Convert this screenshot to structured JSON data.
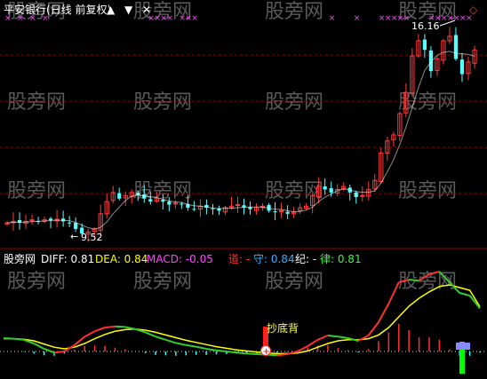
{
  "header": {
    "title": "平安银行(日线 前复权)",
    "icons": [
      "chevron-up-icon",
      "chevron-down-icon",
      "close-icon"
    ],
    "right_icon": "diamond-icon"
  },
  "watermark": "股旁网",
  "colors": {
    "background": "#000000",
    "up_candle": "#ff3b3b",
    "down_candle": "#54ffff",
    "grid": "#8b0000",
    "marker": "#ff44ff",
    "diff": "#ffffff",
    "dea": "#ffff00",
    "macd": "#ff44ff",
    "dao": "#ff3030",
    "shou": "#33aaff",
    "ji": "#ffffff",
    "lv": "#33ff33"
  },
  "main_chart": {
    "high_label": "16.16",
    "low_label": "9.52"
  },
  "indicator_labels": {
    "source": "股旁网",
    "diff": "DIFF: 0.81",
    "dea": "DEA: 0.84",
    "macd": "MACD: -0.05",
    "dao": "道: -",
    "shou": "守: 0.84",
    "ji": "纪: -",
    "lv": "律: 0.81"
  },
  "annotation": "抄底背",
  "chart_data": [
    {
      "type": "candlestick",
      "title": "平安银行(日线 前复权)",
      "ylim": [
        9.2,
        16.6
      ],
      "annotations": [
        "16.16",
        "9.52"
      ],
      "close": [
        9.9,
        9.95,
        9.9,
        9.95,
        10.0,
        9.95,
        10.0,
        9.98,
        10.02,
        9.95,
        9.9,
        9.7,
        9.55,
        9.6,
        9.7,
        10.2,
        10.6,
        10.9,
        10.7,
        10.8,
        10.9,
        10.8,
        10.7,
        10.6,
        10.7,
        10.6,
        10.5,
        10.55,
        10.5,
        10.4,
        10.35,
        10.45,
        10.4,
        10.35,
        10.3,
        10.4,
        10.45,
        10.5,
        10.4,
        10.35,
        10.4,
        10.45,
        10.3,
        10.25,
        10.3,
        10.2,
        10.25,
        10.4,
        10.45,
        10.8,
        11.1,
        11.0,
        10.9,
        11.0,
        11.1,
        10.9,
        10.75,
        10.8,
        11.0,
        11.3,
        12.2,
        12.6,
        12.8,
        13.5,
        14.2,
        15.4,
        15.9,
        15.6,
        14.9,
        15.3,
        15.9,
        16.05,
        15.3,
        14.8,
        15.2,
        15.6
      ],
      "markers": "magenta × signals along the top of the price pane"
    },
    {
      "type": "line",
      "title": "MACD",
      "series": [
        {
          "name": "DIFF",
          "values": [
            0.25,
            0.24,
            0.22,
            0.15,
            0.05,
            -0.02,
            0.0,
            0.12,
            0.28,
            0.38,
            0.45,
            0.47,
            0.46,
            0.42,
            0.36,
            0.28,
            0.22,
            0.16,
            0.12,
            0.09,
            0.05,
            0.02,
            0.0,
            -0.02,
            -0.04,
            -0.05,
            -0.06,
            -0.07,
            -0.05,
            0.0,
            0.1,
            0.22,
            0.3,
            0.28,
            0.25,
            0.2,
            0.3,
            0.55,
            0.9,
            1.3,
            1.35,
            1.33,
            1.45,
            1.5,
            1.3,
            1.1,
            1.05,
            0.81
          ]
        },
        {
          "name": "DEA",
          "values": [
            0.24,
            0.24,
            0.23,
            0.2,
            0.14,
            0.08,
            0.05,
            0.08,
            0.15,
            0.24,
            0.32,
            0.38,
            0.41,
            0.42,
            0.4,
            0.36,
            0.31,
            0.26,
            0.21,
            0.17,
            0.13,
            0.09,
            0.06,
            0.03,
            0.01,
            -0.01,
            -0.03,
            -0.04,
            -0.04,
            -0.03,
            0.01,
            0.08,
            0.15,
            0.2,
            0.22,
            0.22,
            0.24,
            0.31,
            0.45,
            0.65,
            0.85,
            1.0,
            1.12,
            1.22,
            1.25,
            1.2,
            1.15,
            0.84
          ]
        },
        {
          "name": "MACD",
          "values": [
            0.02,
            0.0,
            -0.02,
            -0.1,
            -0.18,
            -0.2,
            -0.1,
            0.08,
            0.26,
            0.28,
            0.26,
            0.18,
            0.1,
            0.0,
            -0.08,
            -0.16,
            -0.18,
            -0.2,
            -0.18,
            -0.16,
            -0.16,
            -0.14,
            -0.12,
            -0.1,
            -0.1,
            -0.08,
            -0.06,
            -0.06,
            -0.02,
            0.06,
            0.18,
            0.28,
            0.3,
            0.16,
            0.06,
            -0.04,
            0.12,
            0.48,
            0.9,
            1.3,
            1.0,
            0.66,
            0.66,
            0.56,
            0.1,
            -0.2,
            -0.2,
            -0.05
          ]
        }
      ]
    }
  ]
}
